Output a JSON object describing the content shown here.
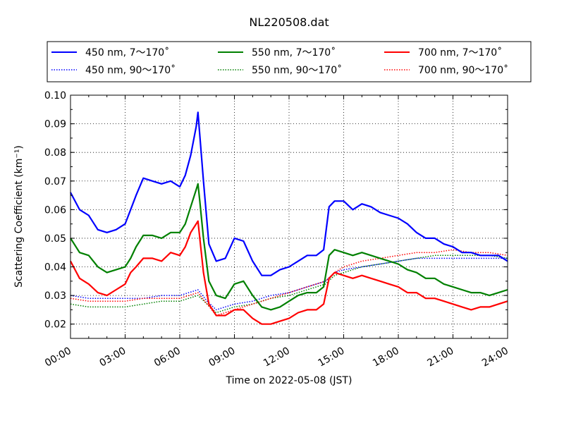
{
  "chart_data": {
    "type": "line",
    "title": "NL220508.dat",
    "xlabel": "Time on 2022-05-08 (JST)",
    "ylabel": "Scattering Coefficient (km⁻¹)",
    "xlim": [
      0,
      24
    ],
    "ylim": [
      0.015,
      0.1
    ],
    "x_ticks": [
      0,
      3,
      6,
      9,
      12,
      15,
      18,
      21,
      24
    ],
    "x_tick_labels": [
      "00:00",
      "03:00",
      "06:00",
      "09:00",
      "12:00",
      "15:00",
      "18:00",
      "21:00",
      "24:00"
    ],
    "y_ticks": [
      0.02,
      0.03,
      0.04,
      0.05,
      0.06,
      0.07,
      0.08,
      0.09,
      0.1
    ],
    "y_tick_labels": [
      "0.02",
      "0.03",
      "0.04",
      "0.05",
      "0.06",
      "0.07",
      "0.08",
      "0.09",
      "0.10"
    ],
    "grid": true,
    "legend_position": "top (above plot)",
    "series": [
      {
        "name": "450 nm, 7～170˚",
        "color": "#0000ff",
        "style": "solid",
        "x": [
          0,
          0.5,
          1,
          1.5,
          2,
          2.5,
          3,
          3.3,
          3.6,
          4,
          4.5,
          5,
          5.5,
          6,
          6.3,
          6.6,
          6.9,
          7.0,
          7.1,
          7.3,
          7.6,
          8,
          8.5,
          9,
          9.5,
          10,
          10.5,
          11,
          11.5,
          12,
          12.5,
          13,
          13.5,
          13.9,
          14.2,
          14.5,
          15,
          15.5,
          16,
          16.5,
          17,
          17.5,
          18,
          18.5,
          19,
          19.5,
          20,
          20.5,
          21,
          21.5,
          22,
          22.5,
          23,
          23.5,
          24
        ],
        "y": [
          0.066,
          0.06,
          0.058,
          0.053,
          0.052,
          0.053,
          0.055,
          0.06,
          0.065,
          0.071,
          0.07,
          0.069,
          0.07,
          0.068,
          0.072,
          0.079,
          0.089,
          0.094,
          0.086,
          0.07,
          0.048,
          0.042,
          0.043,
          0.05,
          0.049,
          0.042,
          0.037,
          0.037,
          0.039,
          0.04,
          0.042,
          0.044,
          0.044,
          0.046,
          0.061,
          0.063,
          0.063,
          0.06,
          0.062,
          0.061,
          0.059,
          0.058,
          0.057,
          0.055,
          0.052,
          0.05,
          0.05,
          0.048,
          0.047,
          0.045,
          0.045,
          0.044,
          0.044,
          0.044,
          0.042
        ]
      },
      {
        "name": "450 nm, 90～170˚",
        "color": "#0000ff",
        "style": "dotted",
        "x": [
          0,
          1,
          2,
          3,
          4,
          5,
          6,
          7,
          7.5,
          8,
          9,
          10,
          11,
          12,
          13,
          14,
          14.5,
          15,
          16,
          17,
          18,
          19,
          20,
          21,
          22,
          23,
          24
        ],
        "y": [
          0.03,
          0.029,
          0.029,
          0.029,
          0.029,
          0.03,
          0.03,
          0.032,
          0.028,
          0.025,
          0.027,
          0.028,
          0.03,
          0.031,
          0.033,
          0.035,
          0.038,
          0.039,
          0.04,
          0.041,
          0.042,
          0.043,
          0.043,
          0.043,
          0.043,
          0.043,
          0.043
        ]
      },
      {
        "name": "550 nm, 7～170˚",
        "color": "#008000",
        "style": "solid",
        "x": [
          0,
          0.5,
          1,
          1.5,
          2,
          2.5,
          3,
          3.3,
          3.6,
          4,
          4.5,
          5,
          5.5,
          6,
          6.3,
          6.6,
          6.9,
          7.0,
          7.1,
          7.3,
          7.6,
          8,
          8.5,
          9,
          9.5,
          10,
          10.5,
          11,
          11.5,
          12,
          12.5,
          13,
          13.5,
          13.9,
          14.2,
          14.5,
          15,
          15.5,
          16,
          16.5,
          17,
          17.5,
          18,
          18.5,
          19,
          19.5,
          20,
          20.5,
          21,
          21.5,
          22,
          22.5,
          23,
          23.5,
          24
        ],
        "y": [
          0.05,
          0.045,
          0.044,
          0.04,
          0.038,
          0.039,
          0.04,
          0.043,
          0.047,
          0.051,
          0.051,
          0.05,
          0.052,
          0.052,
          0.055,
          0.061,
          0.067,
          0.069,
          0.063,
          0.05,
          0.035,
          0.03,
          0.029,
          0.034,
          0.035,
          0.03,
          0.026,
          0.025,
          0.026,
          0.028,
          0.03,
          0.031,
          0.031,
          0.033,
          0.044,
          0.046,
          0.045,
          0.044,
          0.045,
          0.044,
          0.043,
          0.042,
          0.041,
          0.039,
          0.038,
          0.036,
          0.036,
          0.034,
          0.033,
          0.032,
          0.031,
          0.031,
          0.03,
          0.031,
          0.032
        ]
      },
      {
        "name": "550 nm, 90～170˚",
        "color": "#008000",
        "style": "dotted",
        "x": [
          0,
          1,
          2,
          3,
          4,
          5,
          6,
          7,
          7.5,
          8,
          9,
          10,
          11,
          12,
          13,
          14,
          14.5,
          15,
          16,
          17,
          18,
          19,
          20,
          21,
          22,
          23,
          24
        ],
        "y": [
          0.027,
          0.026,
          0.026,
          0.026,
          0.027,
          0.028,
          0.028,
          0.03,
          0.027,
          0.024,
          0.026,
          0.027,
          0.029,
          0.03,
          0.032,
          0.034,
          0.037,
          0.038,
          0.04,
          0.041,
          0.042,
          0.043,
          0.044,
          0.044,
          0.044,
          0.044,
          0.043
        ]
      },
      {
        "name": "700 nm, 7～170˚",
        "color": "#ff0000",
        "style": "solid",
        "x": [
          0,
          0.5,
          1,
          1.5,
          2,
          2.5,
          3,
          3.3,
          3.6,
          4,
          4.5,
          5,
          5.5,
          6,
          6.3,
          6.6,
          6.9,
          7.0,
          7.1,
          7.3,
          7.6,
          8,
          8.5,
          9,
          9.5,
          10,
          10.5,
          11,
          11.5,
          12,
          12.5,
          13,
          13.5,
          13.9,
          14.2,
          14.5,
          15,
          15.5,
          16,
          16.5,
          17,
          17.5,
          18,
          18.5,
          19,
          19.5,
          20,
          20.5,
          21,
          21.5,
          22,
          22.5,
          23,
          23.5,
          24
        ],
        "y": [
          0.042,
          0.036,
          0.034,
          0.031,
          0.03,
          0.032,
          0.034,
          0.038,
          0.04,
          0.043,
          0.043,
          0.042,
          0.045,
          0.044,
          0.047,
          0.052,
          0.055,
          0.056,
          0.05,
          0.038,
          0.027,
          0.023,
          0.023,
          0.025,
          0.025,
          0.022,
          0.02,
          0.02,
          0.021,
          0.022,
          0.024,
          0.025,
          0.025,
          0.027,
          0.036,
          0.038,
          0.037,
          0.036,
          0.037,
          0.036,
          0.035,
          0.034,
          0.033,
          0.031,
          0.031,
          0.029,
          0.029,
          0.028,
          0.027,
          0.026,
          0.025,
          0.026,
          0.026,
          0.027,
          0.028
        ]
      },
      {
        "name": "700 nm, 90～170˚",
        "color": "#ff0000",
        "style": "dotted",
        "x": [
          0,
          1,
          2,
          3,
          4,
          5,
          6,
          7,
          7.5,
          8,
          9,
          10,
          11,
          12,
          13,
          14,
          14.5,
          15,
          16,
          17,
          18,
          19,
          20,
          21,
          22,
          23,
          24
        ],
        "y": [
          0.029,
          0.028,
          0.028,
          0.028,
          0.029,
          0.029,
          0.029,
          0.031,
          0.027,
          0.023,
          0.025,
          0.027,
          0.029,
          0.031,
          0.033,
          0.035,
          0.038,
          0.04,
          0.042,
          0.043,
          0.044,
          0.045,
          0.045,
          0.046,
          0.045,
          0.045,
          0.044
        ]
      }
    ]
  }
}
